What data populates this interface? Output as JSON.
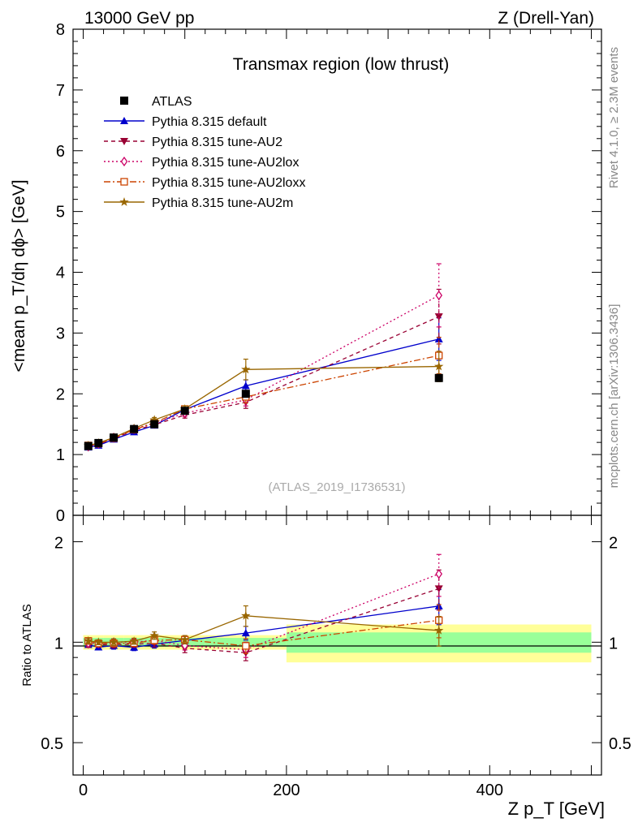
{
  "header": {
    "left": "13000 GeV pp",
    "right": "Z (Drell-Yan)"
  },
  "side_text": {
    "rivet": "Rivet 4.1.0, ≥ 2.3M events",
    "mcplots": "mcplots.cern.ch [arXiv:1306.3436]"
  },
  "chart_data": {
    "type": "line",
    "title": "Transmax region (low thrust)",
    "analysis_label": "(ATLAS_2019_I1736531)",
    "xlabel": "Z p_T [GeV]",
    "ylabel": "<mean p_T/dη dϕ> [GeV]",
    "ratio_ylabel": "Ratio to ATLAS",
    "xlim": [
      -10,
      510
    ],
    "ylim": [
      0,
      8
    ],
    "ratio_ylim": [
      0.4,
      2.4
    ],
    "x_ticks": [
      0,
      200,
      400
    ],
    "y_ticks": [
      1,
      2,
      3,
      4,
      5,
      6,
      7,
      8
    ],
    "ratio_ticks": [
      0.5,
      1,
      2
    ],
    "ratio_tick_labels": [
      "0.5",
      "1",
      "2"
    ],
    "x": [
      5,
      15,
      30,
      50,
      70,
      100,
      160,
      350
    ],
    "bins": [
      [
        0,
        10
      ],
      [
        10,
        20
      ],
      [
        20,
        40
      ],
      [
        40,
        60
      ],
      [
        60,
        80
      ],
      [
        80,
        120
      ],
      [
        120,
        200
      ],
      [
        200,
        500
      ]
    ],
    "data": {
      "name": "ATLAS",
      "color": "#000000",
      "values": [
        1.14,
        1.19,
        1.28,
        1.42,
        1.5,
        1.72,
        2.0,
        2.26
      ],
      "band_inner": [
        0.03,
        0.03,
        0.03,
        0.03,
        0.03,
        0.03,
        0.03,
        0.07
      ],
      "band_outer": [
        0.05,
        0.05,
        0.05,
        0.05,
        0.05,
        0.05,
        0.05,
        0.13
      ]
    },
    "series": [
      {
        "name": "Pythia 8.315 default",
        "color": "#0000cc",
        "style": "solid",
        "marker": "triangle-up",
        "values": [
          1.12,
          1.15,
          1.25,
          1.37,
          1.48,
          1.74,
          2.13,
          2.9
        ],
        "errors": [
          0.02,
          0.02,
          0.03,
          0.03,
          0.04,
          0.05,
          0.1,
          0.35
        ]
      },
      {
        "name": "Pythia 8.315 tune-AU2",
        "color": "#990033",
        "style": "dash",
        "marker": "triangle-down",
        "values": [
          1.12,
          1.17,
          1.26,
          1.4,
          1.49,
          1.65,
          1.86,
          3.27
        ],
        "errors": [
          0.02,
          0.02,
          0.03,
          0.03,
          0.04,
          0.05,
          0.1,
          0.45
        ]
      },
      {
        "name": "Pythia 8.315 tune-AU2lox",
        "color": "#cc0066",
        "style": "dot",
        "marker": "diamond",
        "values": [
          1.13,
          1.18,
          1.28,
          1.42,
          1.52,
          1.68,
          1.9,
          3.62
        ],
        "errors": [
          0.02,
          0.02,
          0.03,
          0.03,
          0.04,
          0.05,
          0.1,
          0.52
        ]
      },
      {
        "name": "Pythia 8.315 tune-AU2loxx",
        "color": "#cc4400",
        "style": "dashdot",
        "marker": "square-open",
        "values": [
          1.15,
          1.18,
          1.27,
          1.41,
          1.52,
          1.75,
          1.95,
          2.63
        ],
        "errors": [
          0.02,
          0.02,
          0.03,
          0.03,
          0.04,
          0.05,
          0.1,
          0.3
        ]
      },
      {
        "name": "Pythia 8.315 tune-AU2m",
        "color": "#996600",
        "style": "solid",
        "marker": "star",
        "values": [
          1.15,
          1.19,
          1.28,
          1.43,
          1.57,
          1.75,
          2.4,
          2.45
        ],
        "errors": [
          0.02,
          0.02,
          0.03,
          0.03,
          0.04,
          0.05,
          0.17,
          0.25
        ]
      }
    ]
  }
}
